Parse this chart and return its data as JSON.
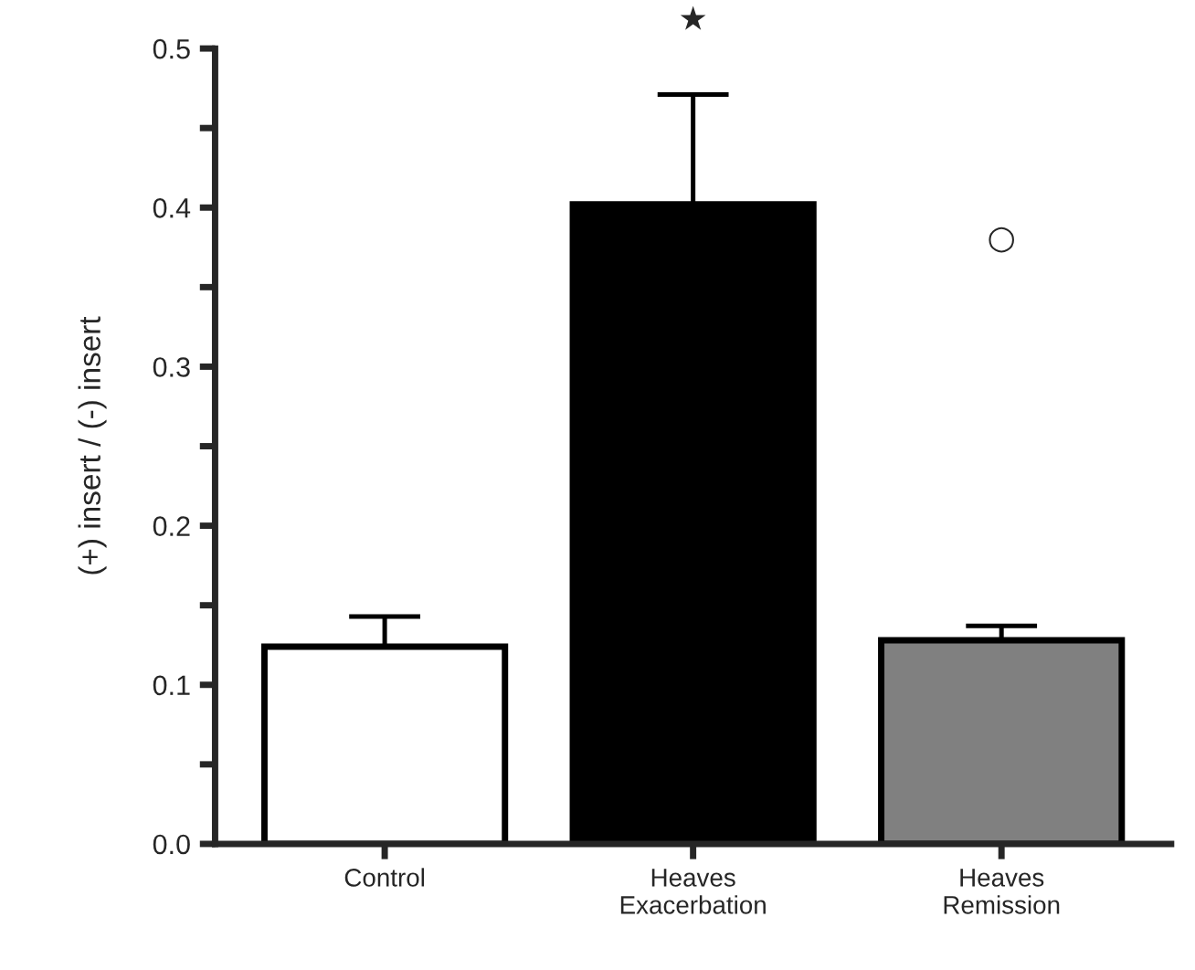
{
  "chart_data": {
    "type": "bar",
    "ylabel": "(+) insert / (-) insert",
    "categories": [
      "Control",
      "Heaves\nExacerbation",
      "Heaves\nRemission"
    ],
    "values": [
      0.124,
      0.402,
      0.128
    ],
    "errors": [
      [
        0.124,
        0.143
      ],
      [
        0.402,
        0.471
      ],
      [
        0.128,
        0.137
      ]
    ],
    "colors": [
      "#ffffff",
      "#000000",
      "#808080"
    ],
    "ylim": [
      0,
      0.5
    ],
    "yticks": [
      {
        "value": 0,
        "label": "0.0"
      },
      {
        "value": 0.05,
        "label": null
      },
      0.1,
      {
        "value": 0.15,
        "label": null
      },
      0.2,
      {
        "value": 0.25,
        "label": null
      },
      0.3,
      {
        "value": 0.35,
        "label": null
      },
      0.4,
      {
        "value": 0.45,
        "label": null
      },
      0.5
    ],
    "annotations": [
      "★",
      "○"
    ],
    "grid": false,
    "legend": false
  }
}
